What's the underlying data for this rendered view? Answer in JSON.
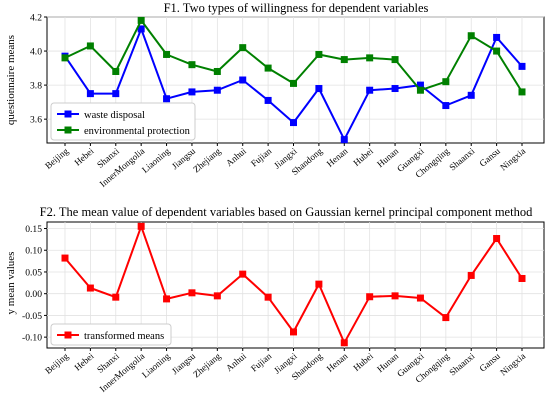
{
  "chart_data": [
    {
      "type": "line",
      "title": "F1. Two types of willingness for dependent variables",
      "xlabel": "",
      "ylabel": "questionnaire means",
      "categories": [
        "Beijing",
        "Hebei",
        "Shanxi",
        "InnerMongolia",
        "Liaoning",
        "Jiangsu",
        "Zhejiang",
        "Anhui",
        "Fujian",
        "Jiangxi",
        "Shandong",
        "Henan",
        "Hubei",
        "Hunan",
        "Guangxi",
        "Chongqing",
        "Shaanxi",
        "Gansu",
        "Ningxia"
      ],
      "yticks": [
        "3.6",
        "3.8",
        "4.0",
        "4.2"
      ],
      "ylim": [
        3.46,
        4.2
      ],
      "grid": true,
      "legend_position": "lower-left",
      "series": [
        {
          "name": "waste disposal",
          "color": "#0000ff",
          "values": [
            3.97,
            3.75,
            3.75,
            4.13,
            3.72,
            3.76,
            3.77,
            3.83,
            3.71,
            3.58,
            3.78,
            3.48,
            3.77,
            3.78,
            3.8,
            3.68,
            3.74,
            4.08,
            3.91
          ]
        },
        {
          "name": "environmental protection",
          "color": "#008000",
          "values": [
            3.96,
            4.03,
            3.88,
            4.18,
            3.98,
            3.92,
            3.88,
            4.02,
            3.9,
            3.81,
            3.98,
            3.95,
            3.96,
            3.95,
            3.77,
            3.82,
            4.09,
            4.0,
            3.76
          ]
        }
      ]
    },
    {
      "type": "line",
      "title": "F2. The mean value of dependent variables based on Gaussian kernel principal component method",
      "xlabel": "",
      "ylabel": "y mean values",
      "categories": [
        "Beijing",
        "Hebei",
        "Shanxi",
        "InnerMongolia",
        "Liaoning",
        "Jiangsu",
        "Zhejiang",
        "Anhui",
        "Fujian",
        "Jiangxi",
        "Shandong",
        "Henan",
        "Hubei",
        "Hunan",
        "Guangxi",
        "Chongqing",
        "Shaanxi",
        "Gansu",
        "Ningxia"
      ],
      "yticks": [
        "0.15",
        "0.10",
        "0.05",
        "0.00",
        "-0.05",
        "-0.10"
      ],
      "ylim": [
        -0.125,
        0.165
      ],
      "grid": true,
      "legend_position": "lower-left",
      "series": [
        {
          "name": "transformed means",
          "color": "#ff0000",
          "values": [
            0.082,
            0.013,
            -0.008,
            0.155,
            -0.012,
            0.002,
            -0.005,
            0.045,
            -0.008,
            -0.088,
            0.022,
            -0.113,
            -0.007,
            -0.005,
            -0.01,
            -0.055,
            0.042,
            0.127,
            0.035
          ]
        }
      ]
    }
  ]
}
